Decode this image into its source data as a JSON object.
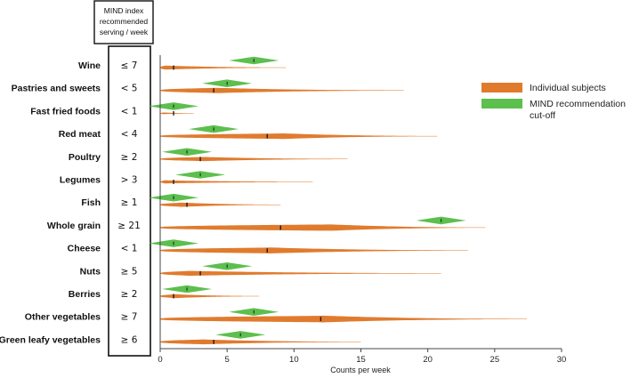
{
  "chart_data": {
    "type": "violin",
    "title": "",
    "xlabel": "Counts per week",
    "ylabel": "",
    "xlim": [
      0,
      30
    ],
    "xticks": [
      0,
      5,
      10,
      15,
      20,
      25,
      30
    ],
    "header": {
      "lines": [
        "MIND index",
        "recommended",
        "serving / week"
      ]
    },
    "legend": [
      {
        "name": "Individual subjects",
        "color": "#E07B2E"
      },
      {
        "name": "MIND recommendation",
        "name_line2": "cut-off",
        "color": "#5CBF4E"
      }
    ],
    "categories": [
      {
        "food": "Wine",
        "serving": "≤ 7",
        "cutoff": 7,
        "median": 1,
        "max": 9.4,
        "peak": 0.3,
        "width": 2.0
      },
      {
        "food": "Pastries and sweets",
        "serving": "< 5",
        "cutoff": 5,
        "median": 4,
        "max": 18.2,
        "peak": 4,
        "width": 2.8
      },
      {
        "food": "Fast fried foods",
        "serving": "< 1",
        "cutoff": 1,
        "median": 1,
        "max": 2.5,
        "peak": 0.2,
        "width": 0.7
      },
      {
        "food": "Red meat",
        "serving": "< 4",
        "cutoff": 4,
        "median": 8,
        "max": 20.7,
        "peak": 9,
        "width": 3.0
      },
      {
        "food": "Poultry",
        "serving": "≥ 2",
        "cutoff": 2,
        "median": 3,
        "max": 14,
        "peak": 3,
        "width": 2.2
      },
      {
        "food": "Legumes",
        "serving": "> 3",
        "cutoff": 3,
        "median": 1,
        "max": 11.4,
        "peak": 0.3,
        "width": 1.5
      },
      {
        "food": "Fish",
        "serving": "≥ 1",
        "cutoff": 1,
        "median": 2,
        "max": 9,
        "peak": 1.5,
        "width": 2.2
      },
      {
        "food": "Whole grain",
        "serving": "≥ 21",
        "cutoff": 21,
        "median": 9,
        "max": 24.3,
        "peak": 12.5,
        "width": 3.5
      },
      {
        "food": "Cheese",
        "serving": "< 1",
        "cutoff": 1,
        "median": 8,
        "max": 23,
        "peak": 8,
        "width": 3.2
      },
      {
        "food": "Nuts",
        "serving": "≥ 5",
        "cutoff": 5,
        "median": 3,
        "max": 21,
        "peak": 2,
        "width": 2.5
      },
      {
        "food": "Berries",
        "serving": "≥ 2",
        "cutoff": 2,
        "median": 1,
        "max": 7.4,
        "peak": 1,
        "width": 2.0
      },
      {
        "food": "Other vegetables",
        "serving": "≥ 7",
        "cutoff": 7,
        "median": 12,
        "max": 27.4,
        "peak": 12,
        "width": 3.6
      },
      {
        "food": "Green leafy vegetables",
        "serving": "≥ 6",
        "cutoff": 6,
        "median": 4,
        "max": 15,
        "peak": 3,
        "width": 2.6
      }
    ]
  }
}
